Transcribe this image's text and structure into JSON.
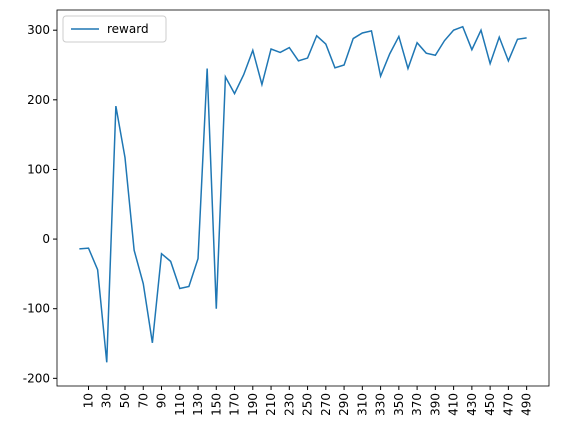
{
  "chart_data": {
    "type": "line",
    "x": [
      0,
      10,
      20,
      30,
      40,
      50,
      60,
      70,
      80,
      90,
      100,
      110,
      120,
      130,
      140,
      150,
      160,
      170,
      180,
      190,
      200,
      210,
      220,
      230,
      240,
      250,
      260,
      270,
      280,
      290,
      300,
      310,
      320,
      330,
      340,
      350,
      360,
      370,
      380,
      390,
      400,
      410,
      420,
      430,
      440,
      450,
      460,
      470,
      480,
      490
    ],
    "series": [
      {
        "name": "reward",
        "color": "#1f77b4",
        "values": [
          -14,
          -13,
          -44,
          -177,
          191,
          117,
          -16,
          -64,
          -149,
          -21,
          -32,
          -71,
          -68,
          -28,
          245,
          -100,
          233,
          209,
          236,
          271,
          222,
          273,
          268,
          275,
          256,
          260,
          292,
          280,
          246,
          250,
          288,
          296,
          299,
          234,
          266,
          291,
          245,
          282,
          267,
          264,
          285,
          300,
          305,
          272,
          300,
          252,
          290,
          256,
          287,
          289
        ]
      }
    ],
    "xlim": [
      -24.5,
      514.5
    ],
    "xticks": [
      10,
      30,
      50,
      70,
      90,
      110,
      130,
      150,
      170,
      190,
      210,
      230,
      250,
      270,
      290,
      310,
      330,
      350,
      370,
      390,
      410,
      430,
      450,
      470,
      490
    ],
    "ylim": [
      -211,
      329
    ],
    "yticks": [
      -200,
      -100,
      0,
      100,
      200,
      300
    ],
    "legend": "upper left"
  }
}
